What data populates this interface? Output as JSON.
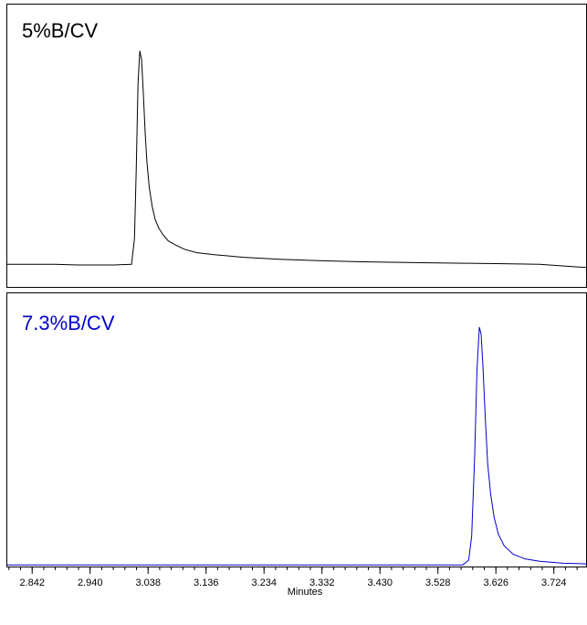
{
  "chart_data": [
    {
      "type": "line",
      "panel_label": "5%B/CV",
      "color": "#000000",
      "xlim": [
        2.8,
        3.78
      ],
      "ylim": [
        -0.08,
        1.05
      ],
      "series": [
        {
          "x": [
            2.8,
            2.88,
            2.92,
            2.98,
            3.01,
            3.015,
            3.018,
            3.021,
            3.024,
            3.027,
            3.03,
            3.033,
            3.036,
            3.04,
            3.045,
            3.05,
            3.056,
            3.063,
            3.072,
            3.085,
            3.1,
            3.12,
            3.15,
            3.2,
            3.26,
            3.32,
            3.4,
            3.45,
            3.5,
            3.58,
            3.64,
            3.7,
            3.78
          ],
          "y": [
            0.0,
            0.0,
            -0.003,
            -0.003,
            0.0,
            0.12,
            0.45,
            0.85,
            1.0,
            0.96,
            0.8,
            0.62,
            0.48,
            0.36,
            0.27,
            0.21,
            0.17,
            0.14,
            0.11,
            0.09,
            0.07,
            0.055,
            0.045,
            0.033,
            0.024,
            0.018,
            0.012,
            0.01,
            0.008,
            0.005,
            0.003,
            0.0,
            -0.015
          ]
        }
      ]
    },
    {
      "type": "line",
      "panel_label": "7.3%B/CV",
      "color": "#0000cc",
      "xlim": [
        2.8,
        3.78
      ],
      "ylim": [
        -0.08,
        1.05
      ],
      "series": [
        {
          "x": [
            2.8,
            2.9,
            3.0,
            3.1,
            3.2,
            3.3,
            3.4,
            3.5,
            3.57,
            3.58,
            3.585,
            3.59,
            3.594,
            3.598,
            3.601,
            3.604,
            3.608,
            3.612,
            3.617,
            3.623,
            3.63,
            3.64,
            3.655,
            3.675,
            3.7,
            3.74,
            3.78
          ],
          "y": [
            0.0,
            0.0,
            0.0,
            0.0,
            0.0,
            0.0,
            0.0,
            0.0,
            0.0,
            0.02,
            0.12,
            0.45,
            0.82,
            1.0,
            0.97,
            0.84,
            0.62,
            0.43,
            0.3,
            0.2,
            0.13,
            0.08,
            0.045,
            0.025,
            0.015,
            0.007,
            0.004
          ]
        }
      ]
    },
    {
      "type": "axis",
      "xlabel": "Minutes",
      "x_ticks": [
        "2.842",
        "2.940",
        "3.038",
        "3.136",
        "3.234",
        "3.332",
        "3.430",
        "3.528",
        "3.626",
        "3.724"
      ]
    }
  ]
}
